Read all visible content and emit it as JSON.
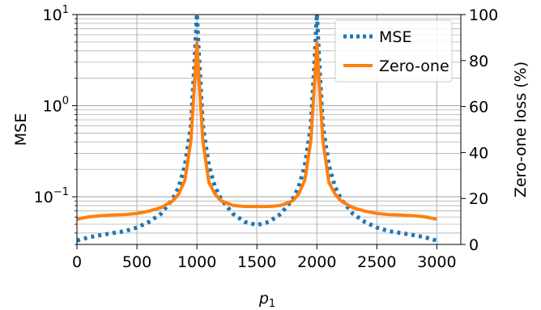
{
  "chart_data": {
    "type": "line",
    "xlabel_main": "p",
    "xlabel_sub": "1",
    "ylabel_left": "MSE",
    "ylabel_right": "Zero-one loss (%)",
    "xlim": [
      0,
      3200
    ],
    "ylim_left": [
      0.03,
      10
    ],
    "ylim_right": [
      0,
      100
    ],
    "left_scale": "log",
    "grid": true,
    "legend_position": "top-right",
    "x_ticks": [
      0,
      500,
      1000,
      1500,
      2000,
      2500,
      3000
    ],
    "x_tick_labels": [
      "0",
      "500",
      "1000",
      "1500",
      "2000",
      "2500",
      "3000"
    ],
    "y_left_ticks": [
      {
        "value": 10,
        "base": "10",
        "exp": "1"
      },
      {
        "value": 1,
        "base": "10",
        "exp": "0"
      },
      {
        "value": 0.1,
        "base": "10",
        "exp": "−1"
      }
    ],
    "y_right_ticks": [
      0,
      20,
      40,
      60,
      80,
      100
    ],
    "y_right_tick_labels": [
      "0",
      "20",
      "40",
      "60",
      "80",
      "100"
    ],
    "series": [
      {
        "name": "MSE",
        "axis": "left",
        "color": "#1f77b4",
        "style": "dotted",
        "x": [
          0,
          100,
          200,
          300,
          400,
          500,
          600,
          700,
          800,
          850,
          900,
          950,
          980,
          1000,
          1020,
          1050,
          1100,
          1150,
          1200,
          1300,
          1400,
          1500,
          1600,
          1700,
          1800,
          1850,
          1900,
          1950,
          1980,
          2000,
          2020,
          2050,
          2100,
          2150,
          2200,
          2300,
          2400,
          2500,
          2600,
          2700,
          2800,
          2900,
          3000
        ],
        "values": [
          0.033,
          0.036,
          0.038,
          0.04,
          0.042,
          0.046,
          0.053,
          0.065,
          0.095,
          0.13,
          0.22,
          0.6,
          3.0,
          11,
          3.0,
          0.6,
          0.22,
          0.13,
          0.095,
          0.065,
          0.053,
          0.049,
          0.053,
          0.065,
          0.095,
          0.13,
          0.22,
          0.6,
          3.0,
          11,
          3.0,
          0.6,
          0.22,
          0.13,
          0.095,
          0.065,
          0.053,
          0.046,
          0.042,
          0.04,
          0.038,
          0.036,
          0.033
        ]
      },
      {
        "name": "Zero-one",
        "axis": "right",
        "color": "#ff7f0e",
        "style": "solid",
        "x": [
          0,
          100,
          200,
          300,
          400,
          500,
          600,
          700,
          800,
          850,
          900,
          950,
          980,
          1000,
          1020,
          1050,
          1100,
          1150,
          1200,
          1300,
          1400,
          1500,
          1600,
          1700,
          1800,
          1850,
          1900,
          1950,
          1980,
          2000,
          2020,
          2050,
          2100,
          2150,
          2200,
          2300,
          2400,
          2500,
          2600,
          2700,
          2800,
          2900,
          3000
        ],
        "values": [
          11,
          12,
          12.5,
          12.8,
          13,
          13.5,
          14.5,
          16,
          19,
          22,
          28,
          45,
          70,
          88,
          70,
          45,
          27,
          22,
          19,
          17,
          16.5,
          16.5,
          16.5,
          17,
          19,
          22,
          28,
          45,
          70,
          88,
          70,
          45,
          27,
          22,
          19,
          16,
          14.5,
          13.5,
          13,
          12.8,
          12.5,
          12,
          11
        ]
      }
    ]
  }
}
